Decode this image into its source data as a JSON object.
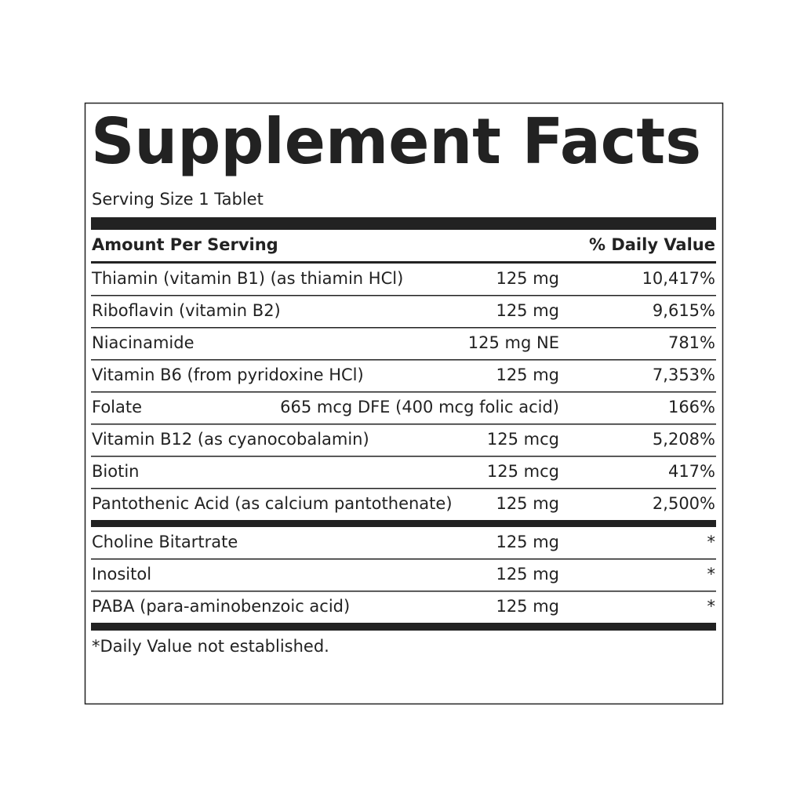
{
  "header": {
    "title": "Supplement Facts",
    "serving_size": "Serving Size 1 Tablet"
  },
  "table": {
    "columns": [
      "Amount Per Serving",
      "% Daily Value"
    ],
    "vitamins": [
      {
        "name": "Thiamin (vitamin B1) (as thiamin HCl)",
        "amount": "125 mg",
        "daily_value": "10,417%"
      },
      {
        "name": "Riboflavin (vitamin B2)",
        "amount": "125 mg",
        "daily_value": "9,615%"
      },
      {
        "name": "Niacinamide",
        "amount": "125 mg NE",
        "daily_value": "781%"
      },
      {
        "name": "Vitamin B6 (from pyridoxine HCl)",
        "amount": "125 mg",
        "daily_value": "7,353%"
      },
      {
        "name": "Folate",
        "amount": "665 mcg DFE (400 mcg folic acid)",
        "daily_value": "166%"
      },
      {
        "name": "Vitamin B12 (as cyanocobalamin)",
        "amount": "125 mcg",
        "daily_value": "5,208%"
      },
      {
        "name": "Biotin",
        "amount": "125 mcg",
        "daily_value": "417%"
      },
      {
        "name": "Pantothenic Acid (as calcium pantothenate)",
        "amount": "125 mg",
        "daily_value": "2,500%"
      }
    ],
    "other": [
      {
        "name": "Choline Bitartrate",
        "amount": "125 mg",
        "daily_value": "*"
      },
      {
        "name": "Inositol",
        "amount": "125 mg",
        "daily_value": "*"
      },
      {
        "name": "PABA (para-aminobenzoic acid)",
        "amount": "125 mg",
        "daily_value": "*"
      }
    ]
  },
  "footnote": "*Daily Value not established."
}
